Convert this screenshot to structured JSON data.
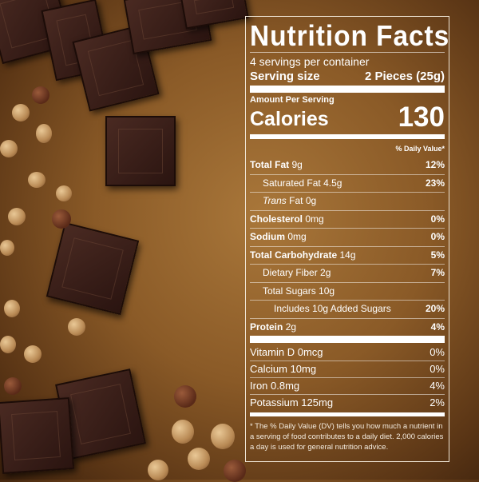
{
  "label": {
    "title": "Nutrition Facts",
    "servings": "4 servings per container",
    "serving_size_label": "Serving size",
    "serving_size_value": "2 Pieces (25g)",
    "amount_per_serving": "Amount Per Serving",
    "calories_label": "Calories",
    "calories_value": "130",
    "dv_header": "% Daily Value*",
    "nutrients": [
      {
        "name": "Total Fat",
        "amount": "9g",
        "dv": "12%",
        "bold": true,
        "indent": 0
      },
      {
        "name": "Saturated Fat",
        "amount": "4.5g",
        "dv": "23%",
        "bold": false,
        "indent": 1
      },
      {
        "name": "Trans",
        "name2": "Fat",
        "amount": "0g",
        "dv": "",
        "bold": false,
        "indent": 1
      },
      {
        "name": "Cholesterol",
        "amount": "0mg",
        "dv": "0%",
        "bold": true,
        "indent": 0
      },
      {
        "name": "Sodium",
        "amount": "0mg",
        "dv": "0%",
        "bold": true,
        "indent": 0
      },
      {
        "name": "Total Carbohydrate",
        "amount": "14g",
        "dv": "5%",
        "bold": true,
        "indent": 0
      },
      {
        "name": "Dietary Fiber",
        "amount": "2g",
        "dv": "7%",
        "bold": false,
        "indent": 1
      },
      {
        "name": "Total Sugars",
        "amount": "10g",
        "dv": "",
        "bold": false,
        "indent": 1
      },
      {
        "name": "Includes 10g Added Sugars",
        "amount": "",
        "dv": "20%",
        "bold": false,
        "indent": 2
      },
      {
        "name": "Protein",
        "amount": "2g",
        "dv": "4%",
        "bold": true,
        "indent": 0
      }
    ],
    "vitamins": [
      {
        "name": "Vitamin D 0mcg",
        "dv": "0%"
      },
      {
        "name": "Calcium 10mg",
        "dv": "0%"
      },
      {
        "name": "Iron 0.8mg",
        "dv": "4%"
      },
      {
        "name": "Potassium 125mg",
        "dv": "2%"
      }
    ],
    "footnote": "* The % Daily Value (DV) tells you how much a nutrient in a serving of food contributes to a daily diet. 2,000 calories a day is used for general nutrition advice."
  }
}
